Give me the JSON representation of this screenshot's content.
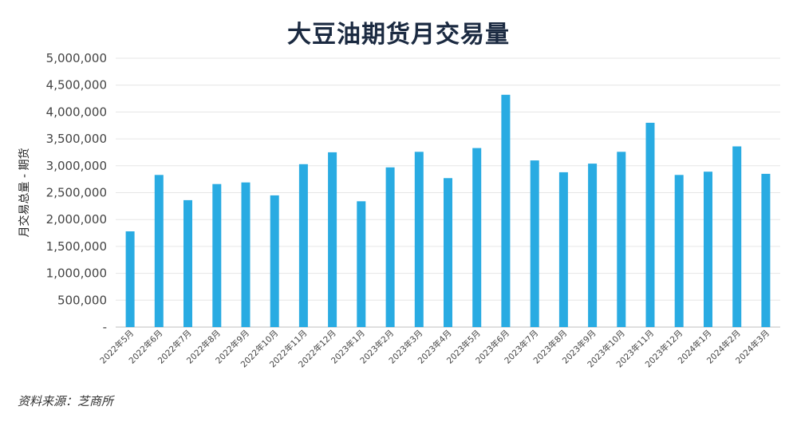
{
  "chart_data": {
    "type": "bar",
    "title": "大豆油期货月交易量",
    "ylabel": "月交易总量 - 期货",
    "xlabel": "",
    "ylim": [
      0,
      5000000
    ],
    "y_ticks": [
      0,
      500000,
      1000000,
      1500000,
      2000000,
      2500000,
      3000000,
      3500000,
      4000000,
      4500000,
      5000000
    ],
    "y_tick_labels": [
      "-",
      "500,000",
      "1,000,000",
      "1,500,000",
      "2,000,000",
      "2,500,000",
      "3,000,000",
      "3,500,000",
      "4,000,000",
      "4,500,000",
      "5,000,000"
    ],
    "grid": true,
    "bar_color": "#29abe2",
    "categories": [
      "2022年5月",
      "2022年6月",
      "2022年7月",
      "2022年8月",
      "2022年9月",
      "2022年10月",
      "2022年11月",
      "2022年12月",
      "2023年1月",
      "2023年2月",
      "2023年3月",
      "2023年4月",
      "2023年5月",
      "2023年6月",
      "2023年7月",
      "2023年8月",
      "2023年9月",
      "2023年10月",
      "2023年11月",
      "2023年12月",
      "2024年1月",
      "2024年2月",
      "2024年3月"
    ],
    "values": [
      1780000,
      2830000,
      2360000,
      2660000,
      2690000,
      2450000,
      3030000,
      3250000,
      2340000,
      2970000,
      3260000,
      2770000,
      3330000,
      4320000,
      3100000,
      2880000,
      3040000,
      3260000,
      3800000,
      2830000,
      2890000,
      3360000,
      2850000
    ]
  },
  "source": "资料来源：芝商所"
}
